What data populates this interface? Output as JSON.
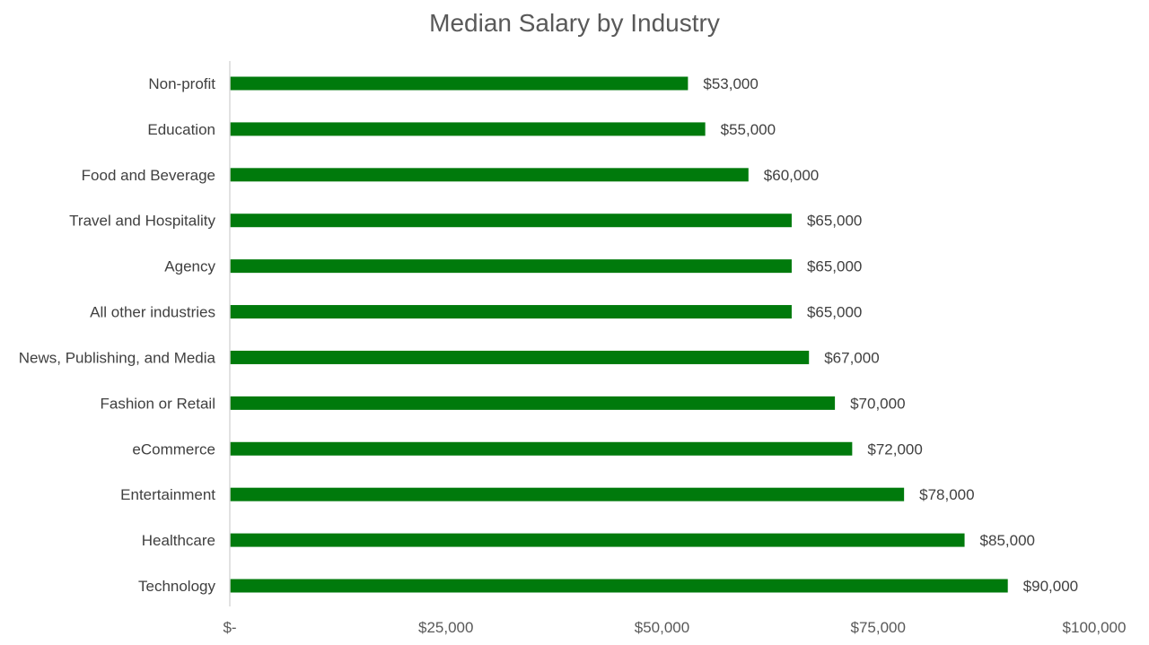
{
  "chart_data": {
    "type": "bar",
    "orientation": "horizontal",
    "title": "Median Salary by Industry",
    "xlabel": "",
    "ylabel": "",
    "categories": [
      "Non-profit",
      "Education",
      "Food and Beverage",
      "Travel and Hospitality",
      "Agency",
      "All other industries",
      "News, Publishing, and Media",
      "Fashion or Retail",
      "eCommerce",
      "Entertainment",
      "Healthcare",
      "Technology"
    ],
    "values": [
      53000,
      55000,
      60000,
      65000,
      65000,
      65000,
      67000,
      70000,
      72000,
      78000,
      85000,
      90000
    ],
    "data_labels": [
      "$53,000",
      "$55,000",
      "$60,000",
      "$65,000",
      "$65,000",
      "$65,000",
      "$67,000",
      "$70,000",
      "$72,000",
      "$78,000",
      "$85,000",
      "$90,000"
    ],
    "xlim": [
      0,
      100000
    ],
    "x_ticks": [
      0,
      25000,
      50000,
      75000,
      100000
    ],
    "x_tick_labels": [
      "$-",
      "$25,000",
      "$50,000",
      "$75,000",
      "$100,000"
    ],
    "grid": false,
    "legend": "none",
    "bar_color": "#007A0C",
    "axis_color": "#D9D9D9"
  }
}
